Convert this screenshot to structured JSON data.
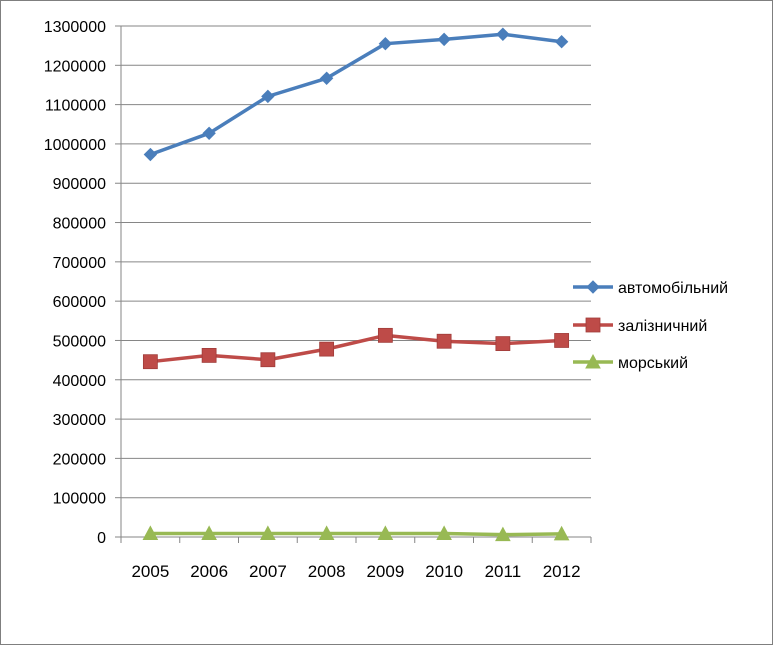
{
  "chart_data": {
    "type": "line",
    "title": "",
    "xlabel": "",
    "ylabel": "",
    "x": [
      "2005",
      "2006",
      "2007",
      "2008",
      "2009",
      "2010",
      "2011",
      "2012"
    ],
    "ylim": [
      0,
      1300000
    ],
    "ytick_step": 100000,
    "yticks": [
      "0",
      "100000",
      "200000",
      "300000",
      "400000",
      "500000",
      "600000",
      "700000",
      "800000",
      "900000",
      "1000000",
      "1100000",
      "1200000",
      "1300000"
    ],
    "grid": true,
    "legend_position": "right",
    "series": [
      {
        "name": "автомобільний",
        "color": "#4a7ebb",
        "marker": "diamond",
        "values": [
          973000,
          1027000,
          1121000,
          1167000,
          1255000,
          1266000,
          1279000,
          1260000
        ]
      },
      {
        "name": "залізничний",
        "color": "#be4b48",
        "marker": "square",
        "values": [
          446000,
          462000,
          451000,
          478000,
          513000,
          498000,
          492000,
          500000
        ]
      },
      {
        "name": "морський",
        "color": "#98b954",
        "marker": "triangle",
        "values": [
          9000,
          9000,
          9000,
          9000,
          9000,
          9000,
          6000,
          8000
        ]
      }
    ]
  }
}
